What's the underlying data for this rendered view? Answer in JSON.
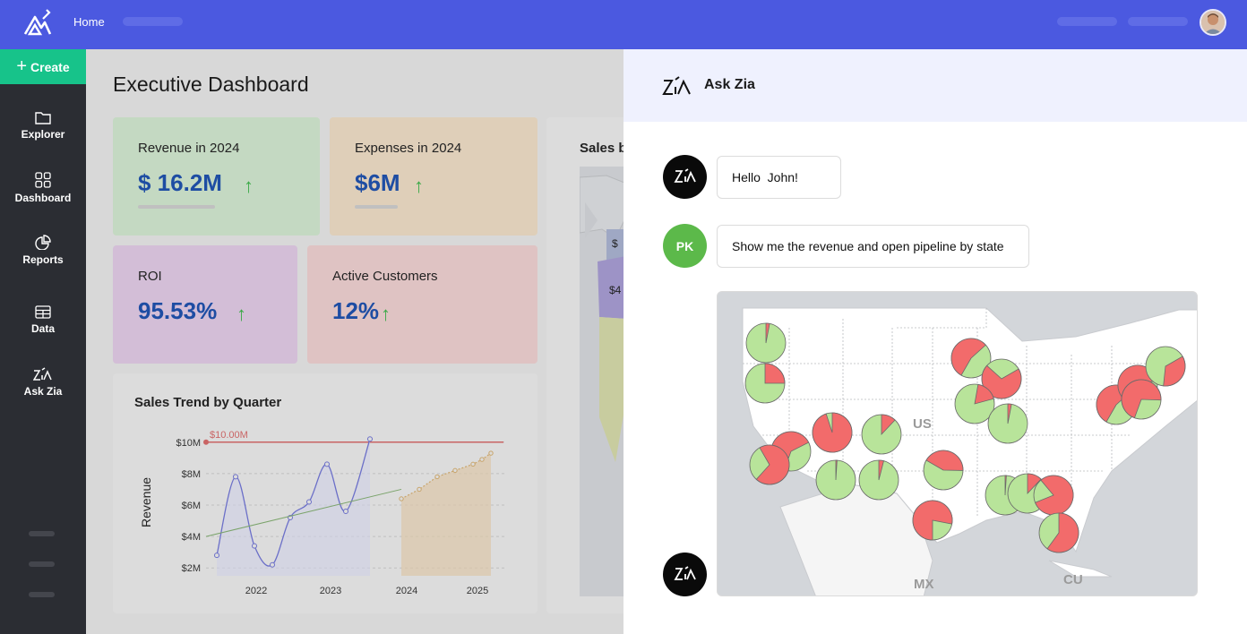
{
  "topbar": {
    "home_label": "Home"
  },
  "sidebar": {
    "create_label": "Create",
    "items": [
      {
        "label": "Explorer",
        "icon": "folder-icon"
      },
      {
        "label": "Dashboard",
        "icon": "grid-icon"
      },
      {
        "label": "Reports",
        "icon": "pie-chart-icon"
      },
      {
        "label": "Data",
        "icon": "table-icon"
      },
      {
        "label": "Ask Zia",
        "icon": "zia-icon"
      }
    ]
  },
  "dashboard": {
    "title": "Executive Dashboard",
    "kpis": [
      {
        "label": "Revenue in 2024",
        "value": "$ 16.2M",
        "trend": "up"
      },
      {
        "label": "Expenses in 2024",
        "value": "$6M",
        "trend": "up"
      },
      {
        "label": "ROI",
        "value": "95.53%",
        "trend": "up"
      },
      {
        "label": "Active Customers",
        "value": "12%",
        "trend": "up"
      }
    ],
    "map_card_title": "Sales b",
    "map_labels": [
      "$",
      "$4"
    ]
  },
  "chart_data": {
    "type": "line",
    "title": "Sales Trend by Quarter",
    "ylabel": "Revenue",
    "xlabel": "",
    "x_ticks": [
      "2022",
      "2023",
      "2024",
      "2025"
    ],
    "y_ticks": [
      "$2M",
      "$4M",
      "$6M",
      "$8M",
      "$10M"
    ],
    "ylim": [
      1.5,
      10.5
    ],
    "target_label": "$10.00M",
    "target_value": 10.0,
    "series": [
      {
        "values": [
          2.8,
          7.8,
          3.4,
          2.2,
          5.2,
          6.2,
          8.6,
          5.6,
          10.2,
          6.0
        ]
      },
      {
        "values": [
          6.4,
          7.0,
          7.8,
          8.2,
          8.6,
          8.9,
          9.3
        ]
      }
    ],
    "grid": true
  },
  "zia": {
    "title": "Ask Zia",
    "messages": [
      {
        "from": "bot",
        "text": "Hello  John!"
      },
      {
        "from": "user",
        "initials": "PK",
        "text": "Show me the revenue and open pipeline by state"
      }
    ],
    "map_labels": {
      "us": "US",
      "mx": "MX",
      "cu": "CU"
    }
  },
  "colors": {
    "topbar": "#4b59e0",
    "create": "#17c38a",
    "sidebar": "#2b2d33",
    "pie_revenue": "#b8e49a",
    "pie_pipeline": "#f26b6b"
  }
}
